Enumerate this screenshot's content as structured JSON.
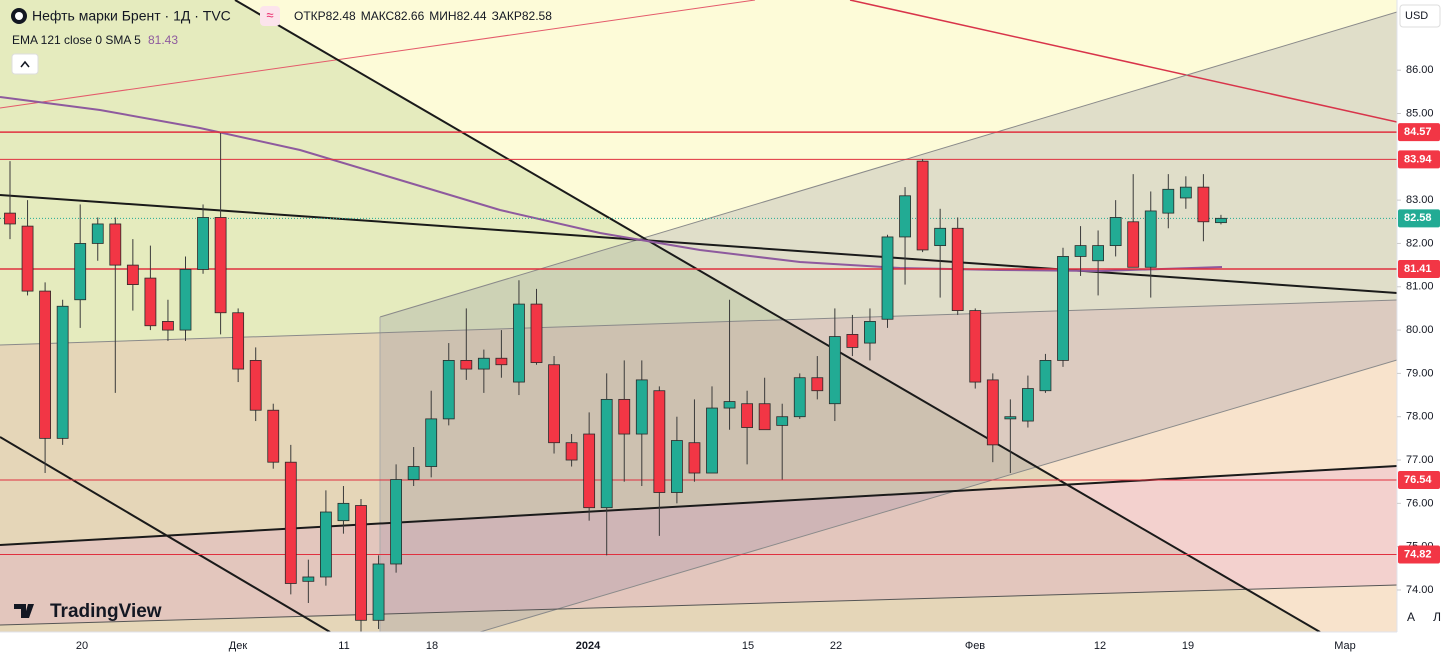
{
  "header": {
    "title": "Нефть марки Брент · 1Д · TVC",
    "open_label": "ОТКР",
    "open": "82.48",
    "high_label": "МАКС",
    "high": "82.66",
    "low_label": "МИН",
    "low": "82.44",
    "close_label": "ЗАКР",
    "close": "82.58"
  },
  "indicator": {
    "name": "EMA 121 close 0 SMA 5",
    "value": "81.43"
  },
  "currency": "USD",
  "logo": "TradingView",
  "buttons": [
    "A",
    "Л"
  ],
  "chart": {
    "type": "candlestick",
    "up_color": "#22ab94",
    "down_color": "#f23645",
    "ylim": [
      73.03,
      87.62
    ],
    "yticks": [
      {
        "value": 86,
        "label": "86.00"
      },
      {
        "value": 85,
        "label": "85.00"
      },
      {
        "value": 83,
        "label": "83.00"
      },
      {
        "value": 82,
        "label": "82.00"
      },
      {
        "value": 81,
        "label": "81.00"
      },
      {
        "value": 80,
        "label": "80.00"
      },
      {
        "value": 79,
        "label": "79.00"
      },
      {
        "value": 78,
        "label": "78.00"
      },
      {
        "value": 77,
        "label": "77.00"
      },
      {
        "value": 76,
        "label": "76.00"
      },
      {
        "value": 75,
        "label": "75.00"
      },
      {
        "value": 74,
        "label": "74.00"
      }
    ],
    "xlabels": [
      "20",
      "Дек",
      "11",
      "18",
      "2024",
      "15",
      "22",
      "Фев",
      "12",
      "19",
      "Мар"
    ],
    "levels": [
      {
        "value": 84.57,
        "label": "84.57"
      },
      {
        "value": 83.94,
        "label": "83.94"
      },
      {
        "value": 81.41,
        "label": "81.41"
      },
      {
        "value": 76.54,
        "label": "76.54"
      },
      {
        "value": 74.82,
        "label": "74.82"
      }
    ],
    "last": {
      "value": 82.58,
      "label": "82.58"
    },
    "candles": [
      {
        "o": 82.7,
        "h": 83.9,
        "l": 82.1,
        "c": 82.45
      },
      {
        "o": 82.4,
        "h": 83.0,
        "l": 80.8,
        "c": 80.9
      },
      {
        "o": 80.9,
        "h": 81.1,
        "l": 76.7,
        "c": 77.5
      },
      {
        "o": 77.5,
        "h": 80.7,
        "l": 77.35,
        "c": 80.55
      },
      {
        "o": 80.7,
        "h": 82.9,
        "l": 80.05,
        "c": 82.0
      },
      {
        "o": 82.0,
        "h": 82.6,
        "l": 81.6,
        "c": 82.45
      },
      {
        "o": 82.45,
        "h": 82.6,
        "l": 78.55,
        "c": 81.5
      },
      {
        "o": 81.5,
        "h": 82.1,
        "l": 80.45,
        "c": 81.05
      },
      {
        "o": 81.2,
        "h": 81.95,
        "l": 80.0,
        "c": 80.1
      },
      {
        "o": 80.2,
        "h": 80.7,
        "l": 79.75,
        "c": 80.0
      },
      {
        "o": 80.0,
        "h": 81.7,
        "l": 79.75,
        "c": 81.4
      },
      {
        "o": 81.4,
        "h": 82.9,
        "l": 81.3,
        "c": 82.6
      },
      {
        "o": 82.6,
        "h": 84.55,
        "l": 79.9,
        "c": 80.4
      },
      {
        "o": 80.4,
        "h": 80.5,
        "l": 78.8,
        "c": 79.1
      },
      {
        "o": 79.3,
        "h": 79.6,
        "l": 77.9,
        "c": 78.15
      },
      {
        "o": 78.15,
        "h": 78.3,
        "l": 76.8,
        "c": 76.95
      },
      {
        "o": 76.95,
        "h": 77.35,
        "l": 73.9,
        "c": 74.15
      },
      {
        "o": 74.2,
        "h": 74.7,
        "l": 73.7,
        "c": 74.3
      },
      {
        "o": 74.3,
        "h": 76.3,
        "l": 74.1,
        "c": 75.8
      },
      {
        "o": 75.6,
        "h": 76.4,
        "l": 75.3,
        "c": 76.0
      },
      {
        "o": 75.95,
        "h": 76.1,
        "l": 73.0,
        "c": 73.3
      },
      {
        "o": 73.3,
        "h": 74.8,
        "l": 73.1,
        "c": 74.6
      },
      {
        "o": 74.6,
        "h": 76.9,
        "l": 74.4,
        "c": 76.55
      },
      {
        "o": 76.55,
        "h": 77.3,
        "l": 76.4,
        "c": 76.85
      },
      {
        "o": 76.85,
        "h": 78.6,
        "l": 76.6,
        "c": 77.95
      },
      {
        "o": 77.95,
        "h": 79.7,
        "l": 77.8,
        "c": 79.3
      },
      {
        "o": 79.3,
        "h": 80.5,
        "l": 78.85,
        "c": 79.1
      },
      {
        "o": 79.1,
        "h": 79.55,
        "l": 78.55,
        "c": 79.35
      },
      {
        "o": 79.35,
        "h": 80.0,
        "l": 78.9,
        "c": 79.2
      },
      {
        "o": 78.8,
        "h": 81.15,
        "l": 78.5,
        "c": 80.6
      },
      {
        "o": 80.6,
        "h": 80.95,
        "l": 79.2,
        "c": 79.25
      },
      {
        "o": 79.2,
        "h": 79.4,
        "l": 77.15,
        "c": 77.4
      },
      {
        "o": 77.4,
        "h": 77.6,
        "l": 76.85,
        "c": 77.0
      },
      {
        "o": 77.6,
        "h": 78.1,
        "l": 75.6,
        "c": 75.9
      },
      {
        "o": 75.9,
        "h": 79.0,
        "l": 74.8,
        "c": 78.4
      },
      {
        "o": 78.4,
        "h": 79.3,
        "l": 76.5,
        "c": 77.6
      },
      {
        "o": 77.6,
        "h": 79.3,
        "l": 76.4,
        "c": 78.85
      },
      {
        "o": 78.6,
        "h": 78.7,
        "l": 75.25,
        "c": 76.25
      },
      {
        "o": 76.25,
        "h": 78.0,
        "l": 76.0,
        "c": 77.45
      },
      {
        "o": 77.4,
        "h": 78.4,
        "l": 76.5,
        "c": 76.7
      },
      {
        "o": 76.7,
        "h": 78.7,
        "l": 76.7,
        "c": 78.2
      },
      {
        "o": 78.2,
        "h": 80.7,
        "l": 77.7,
        "c": 78.35
      },
      {
        "o": 78.3,
        "h": 78.6,
        "l": 76.9,
        "c": 77.75
      },
      {
        "o": 78.3,
        "h": 78.9,
        "l": 77.7,
        "c": 77.7
      },
      {
        "o": 77.8,
        "h": 78.3,
        "l": 76.55,
        "c": 78.0
      },
      {
        "o": 78.0,
        "h": 79.0,
        "l": 77.95,
        "c": 78.9
      },
      {
        "o": 78.9,
        "h": 79.4,
        "l": 78.4,
        "c": 78.6
      },
      {
        "o": 78.3,
        "h": 80.5,
        "l": 77.9,
        "c": 79.85
      },
      {
        "o": 79.9,
        "h": 80.35,
        "l": 79.4,
        "c": 79.6
      },
      {
        "o": 79.7,
        "h": 80.5,
        "l": 79.3,
        "c": 80.2
      },
      {
        "o": 80.25,
        "h": 82.2,
        "l": 80.05,
        "c": 82.15
      },
      {
        "o": 82.15,
        "h": 83.3,
        "l": 81.05,
        "c": 83.1
      },
      {
        "o": 83.9,
        "h": 83.95,
        "l": 81.8,
        "c": 81.85
      },
      {
        "o": 81.95,
        "h": 82.8,
        "l": 80.75,
        "c": 82.35
      },
      {
        "o": 82.35,
        "h": 82.6,
        "l": 80.35,
        "c": 80.45
      },
      {
        "o": 80.45,
        "h": 80.5,
        "l": 78.65,
        "c": 78.8
      },
      {
        "o": 78.85,
        "h": 79.0,
        "l": 76.95,
        "c": 77.35
      },
      {
        "o": 77.95,
        "h": 78.4,
        "l": 76.7,
        "c": 78.0
      },
      {
        "o": 77.9,
        "h": 78.95,
        "l": 77.75,
        "c": 78.65
      },
      {
        "o": 78.6,
        "h": 79.45,
        "l": 78.55,
        "c": 79.3
      },
      {
        "o": 79.3,
        "h": 81.9,
        "l": 79.15,
        "c": 81.7
      },
      {
        "o": 81.7,
        "h": 82.4,
        "l": 81.25,
        "c": 81.95
      },
      {
        "o": 81.6,
        "h": 82.3,
        "l": 80.8,
        "c": 81.95
      },
      {
        "o": 81.95,
        "h": 83.0,
        "l": 81.7,
        "c": 82.6
      },
      {
        "o": 82.5,
        "h": 83.6,
        "l": 81.45,
        "c": 81.45
      },
      {
        "o": 81.45,
        "h": 83.2,
        "l": 80.75,
        "c": 82.75
      },
      {
        "o": 82.7,
        "h": 83.6,
        "l": 82.35,
        "c": 83.25
      },
      {
        "o": 83.05,
        "h": 83.55,
        "l": 82.8,
        "c": 83.3
      },
      {
        "o": 83.3,
        "h": 83.6,
        "l": 82.05,
        "c": 82.5
      },
      {
        "o": 82.48,
        "h": 82.66,
        "l": 82.44,
        "c": 82.58
      }
    ]
  }
}
